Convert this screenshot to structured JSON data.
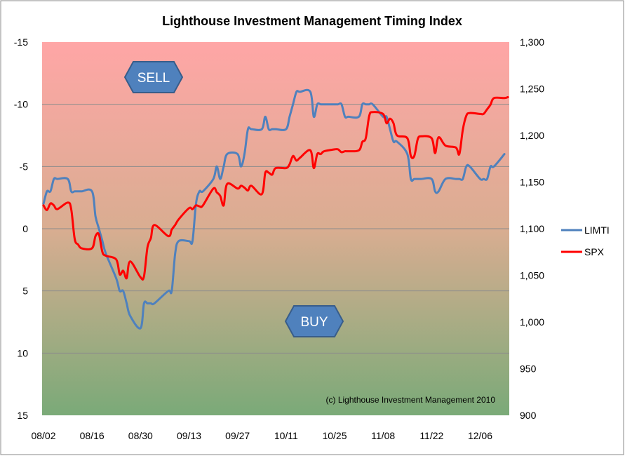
{
  "chart_data": {
    "type": "line",
    "title": "Lighthouse Investment Management Timing Index",
    "xlabel": "",
    "ylabel": "",
    "x_ticks": [
      "08/02",
      "08/16",
      "08/30",
      "09/13",
      "09/27",
      "10/11",
      "10/25",
      "11/08",
      "11/22",
      "12/06"
    ],
    "y_left": {
      "range": [
        -15,
        15
      ],
      "inverted": true,
      "ticks": [
        "-15",
        "-10",
        "-5",
        "0",
        "5",
        "10",
        "15"
      ]
    },
    "y_right": {
      "range": [
        900,
        1300
      ],
      "ticks": [
        "1,300",
        "1,250",
        "1,200",
        "1,150",
        "1,100",
        "1,050",
        "1,000",
        "950",
        "900"
      ]
    },
    "grid": "horizontal",
    "legend_position": "right",
    "background": {
      "top_color": "#ffa6a6",
      "middle_color": "#d9ad91",
      "bottom_color": "#7aaa78"
    },
    "series": [
      {
        "name": "LIMTI",
        "axis": "left",
        "color": "#4f81bd",
        "points": [
          [
            "08/02",
            -2
          ],
          [
            "08/03",
            -3
          ],
          [
            "08/04",
            -3
          ],
          [
            "08/05",
            -4
          ],
          [
            "08/06",
            -4
          ],
          [
            "08/09",
            -4
          ],
          [
            "08/10",
            -3
          ],
          [
            "08/11",
            -3
          ],
          [
            "08/12",
            -3
          ],
          [
            "08/13",
            -3
          ],
          [
            "08/16",
            -3
          ],
          [
            "08/17",
            -1
          ],
          [
            "08/18",
            0
          ],
          [
            "08/19",
            1
          ],
          [
            "08/20",
            2
          ],
          [
            "08/23",
            4
          ],
          [
            "08/24",
            5
          ],
          [
            "08/25",
            5
          ],
          [
            "08/26",
            6
          ],
          [
            "08/27",
            7
          ],
          [
            "08/30",
            8
          ],
          [
            "08/31",
            6
          ],
          [
            "09/01",
            6
          ],
          [
            "09/02",
            6
          ],
          [
            "09/03",
            6
          ],
          [
            "09/07",
            5
          ],
          [
            "09/08",
            5
          ],
          [
            "09/09",
            2
          ],
          [
            "09/10",
            1
          ],
          [
            "09/13",
            1
          ],
          [
            "09/14",
            1
          ],
          [
            "09/15",
            -2
          ],
          [
            "09/16",
            -3
          ],
          [
            "09/17",
            -3
          ],
          [
            "09/20",
            -4
          ],
          [
            "09/21",
            -5
          ],
          [
            "09/22",
            -4
          ],
          [
            "09/23",
            -5
          ],
          [
            "09/24",
            -6
          ],
          [
            "09/27",
            -6
          ],
          [
            "09/28",
            -5
          ],
          [
            "09/29",
            -6
          ],
          [
            "09/30",
            -8
          ],
          [
            "10/01",
            -8
          ],
          [
            "10/04",
            -8
          ],
          [
            "10/05",
            -9
          ],
          [
            "10/06",
            -8
          ],
          [
            "10/07",
            -8
          ],
          [
            "10/08",
            -8
          ],
          [
            "10/11",
            -8
          ],
          [
            "10/12",
            -9
          ],
          [
            "10/13",
            -10
          ],
          [
            "10/14",
            -11
          ],
          [
            "10/15",
            -11
          ],
          [
            "10/18",
            -11
          ],
          [
            "10/19",
            -9
          ],
          [
            "10/20",
            -10
          ],
          [
            "10/21",
            -10
          ],
          [
            "10/22",
            -10
          ],
          [
            "10/25",
            -10
          ],
          [
            "10/26",
            -10
          ],
          [
            "10/27",
            -10
          ],
          [
            "10/28",
            -9
          ],
          [
            "10/29",
            -9
          ],
          [
            "11/01",
            -9
          ],
          [
            "11/02",
            -10
          ],
          [
            "11/03",
            -10
          ],
          [
            "11/04",
            -10
          ],
          [
            "11/05",
            -10
          ],
          [
            "11/08",
            -9
          ],
          [
            "11/09",
            -9
          ],
          [
            "11/10",
            -8
          ],
          [
            "11/11",
            -7
          ],
          [
            "11/12",
            -7
          ],
          [
            "11/15",
            -6
          ],
          [
            "11/16",
            -4
          ],
          [
            "11/17",
            -4
          ],
          [
            "11/18",
            -4
          ],
          [
            "11/19",
            -4
          ],
          [
            "11/22",
            -4
          ],
          [
            "11/23",
            -3
          ],
          [
            "11/24",
            -3
          ],
          [
            "11/26",
            -4
          ],
          [
            "11/29",
            -4
          ],
          [
            "11/30",
            -4
          ],
          [
            "12/01",
            -4
          ],
          [
            "12/02",
            -5
          ],
          [
            "12/03",
            -5
          ],
          [
            "12/06",
            -4
          ],
          [
            "12/07",
            -4
          ],
          [
            "12/08",
            -4
          ],
          [
            "12/09",
            -5
          ],
          [
            "12/10",
            -5
          ],
          [
            "12/13",
            -6
          ]
        ]
      },
      {
        "name": "SPX",
        "axis": "right",
        "color": "#ff0000",
        "points": [
          [
            "08/02",
            1125
          ],
          [
            "08/03",
            1120
          ],
          [
            "08/04",
            1127
          ],
          [
            "08/05",
            1125
          ],
          [
            "08/06",
            1121
          ],
          [
            "08/09",
            1128
          ],
          [
            "08/10",
            1121
          ],
          [
            "08/11",
            1089
          ],
          [
            "08/12",
            1083
          ],
          [
            "08/13",
            1079
          ],
          [
            "08/16",
            1079
          ],
          [
            "08/17",
            1092
          ],
          [
            "08/18",
            1094
          ],
          [
            "08/19",
            1075
          ],
          [
            "08/20",
            1071
          ],
          [
            "08/23",
            1067
          ],
          [
            "08/24",
            1051
          ],
          [
            "08/25",
            1055
          ],
          [
            "08/26",
            1047
          ],
          [
            "08/27",
            1065
          ],
          [
            "08/30",
            1048
          ],
          [
            "08/31",
            1049
          ],
          [
            "09/01",
            1080
          ],
          [
            "09/02",
            1090
          ],
          [
            "09/03",
            1104
          ],
          [
            "09/07",
            1092
          ],
          [
            "09/08",
            1099
          ],
          [
            "09/09",
            1104
          ],
          [
            "09/10",
            1110
          ],
          [
            "09/13",
            1122
          ],
          [
            "09/14",
            1121
          ],
          [
            "09/15",
            1125
          ],
          [
            "09/16",
            1124
          ],
          [
            "09/17",
            1125
          ],
          [
            "09/20",
            1143
          ],
          [
            "09/21",
            1139
          ],
          [
            "09/22",
            1135
          ],
          [
            "09/23",
            1125
          ],
          [
            "09/24",
            1148
          ],
          [
            "09/27",
            1143
          ],
          [
            "09/28",
            1146
          ],
          [
            "09/29",
            1144
          ],
          [
            "09/30",
            1141
          ],
          [
            "10/01",
            1146
          ],
          [
            "10/04",
            1137
          ],
          [
            "10/05",
            1160
          ],
          [
            "10/06",
            1160
          ],
          [
            "10/07",
            1158
          ],
          [
            "10/08",
            1165
          ],
          [
            "10/11",
            1165
          ],
          [
            "10/12",
            1169
          ],
          [
            "10/13",
            1178
          ],
          [
            "10/14",
            1173
          ],
          [
            "10/15",
            1176
          ],
          [
            "10/18",
            1184
          ],
          [
            "10/19",
            1165
          ],
          [
            "10/20",
            1180
          ],
          [
            "10/21",
            1180
          ],
          [
            "10/22",
            1183
          ],
          [
            "10/25",
            1185
          ],
          [
            "10/26",
            1185
          ],
          [
            "10/27",
            1182
          ],
          [
            "10/28",
            1183
          ],
          [
            "10/29",
            1183
          ],
          [
            "11/01",
            1184
          ],
          [
            "11/02",
            1193
          ],
          [
            "11/03",
            1197
          ],
          [
            "11/04",
            1221
          ],
          [
            "11/05",
            1225
          ],
          [
            "11/08",
            1223
          ],
          [
            "11/09",
            1213
          ],
          [
            "11/10",
            1218
          ],
          [
            "11/11",
            1213
          ],
          [
            "11/12",
            1200
          ],
          [
            "11/15",
            1197
          ],
          [
            "11/16",
            1178
          ],
          [
            "11/17",
            1178
          ],
          [
            "11/18",
            1196
          ],
          [
            "11/19",
            1199
          ],
          [
            "11/22",
            1197
          ],
          [
            "11/23",
            1181
          ],
          [
            "11/24",
            1198
          ],
          [
            "11/26",
            1189
          ],
          [
            "11/29",
            1187
          ],
          [
            "11/30",
            1180
          ],
          [
            "12/01",
            1206
          ],
          [
            "12/02",
            1221
          ],
          [
            "12/03",
            1224
          ],
          [
            "12/06",
            1223
          ],
          [
            "12/07",
            1223
          ],
          [
            "12/08",
            1228
          ],
          [
            "12/09",
            1233
          ],
          [
            "12/10",
            1240
          ],
          [
            "12/13",
            1240
          ],
          [
            "12/14",
            1241
          ]
        ]
      }
    ],
    "annotations": {
      "sell_label": "SELL",
      "buy_label": "BUY",
      "copyright": "(c) Lighthouse Investment Management 2010"
    }
  }
}
